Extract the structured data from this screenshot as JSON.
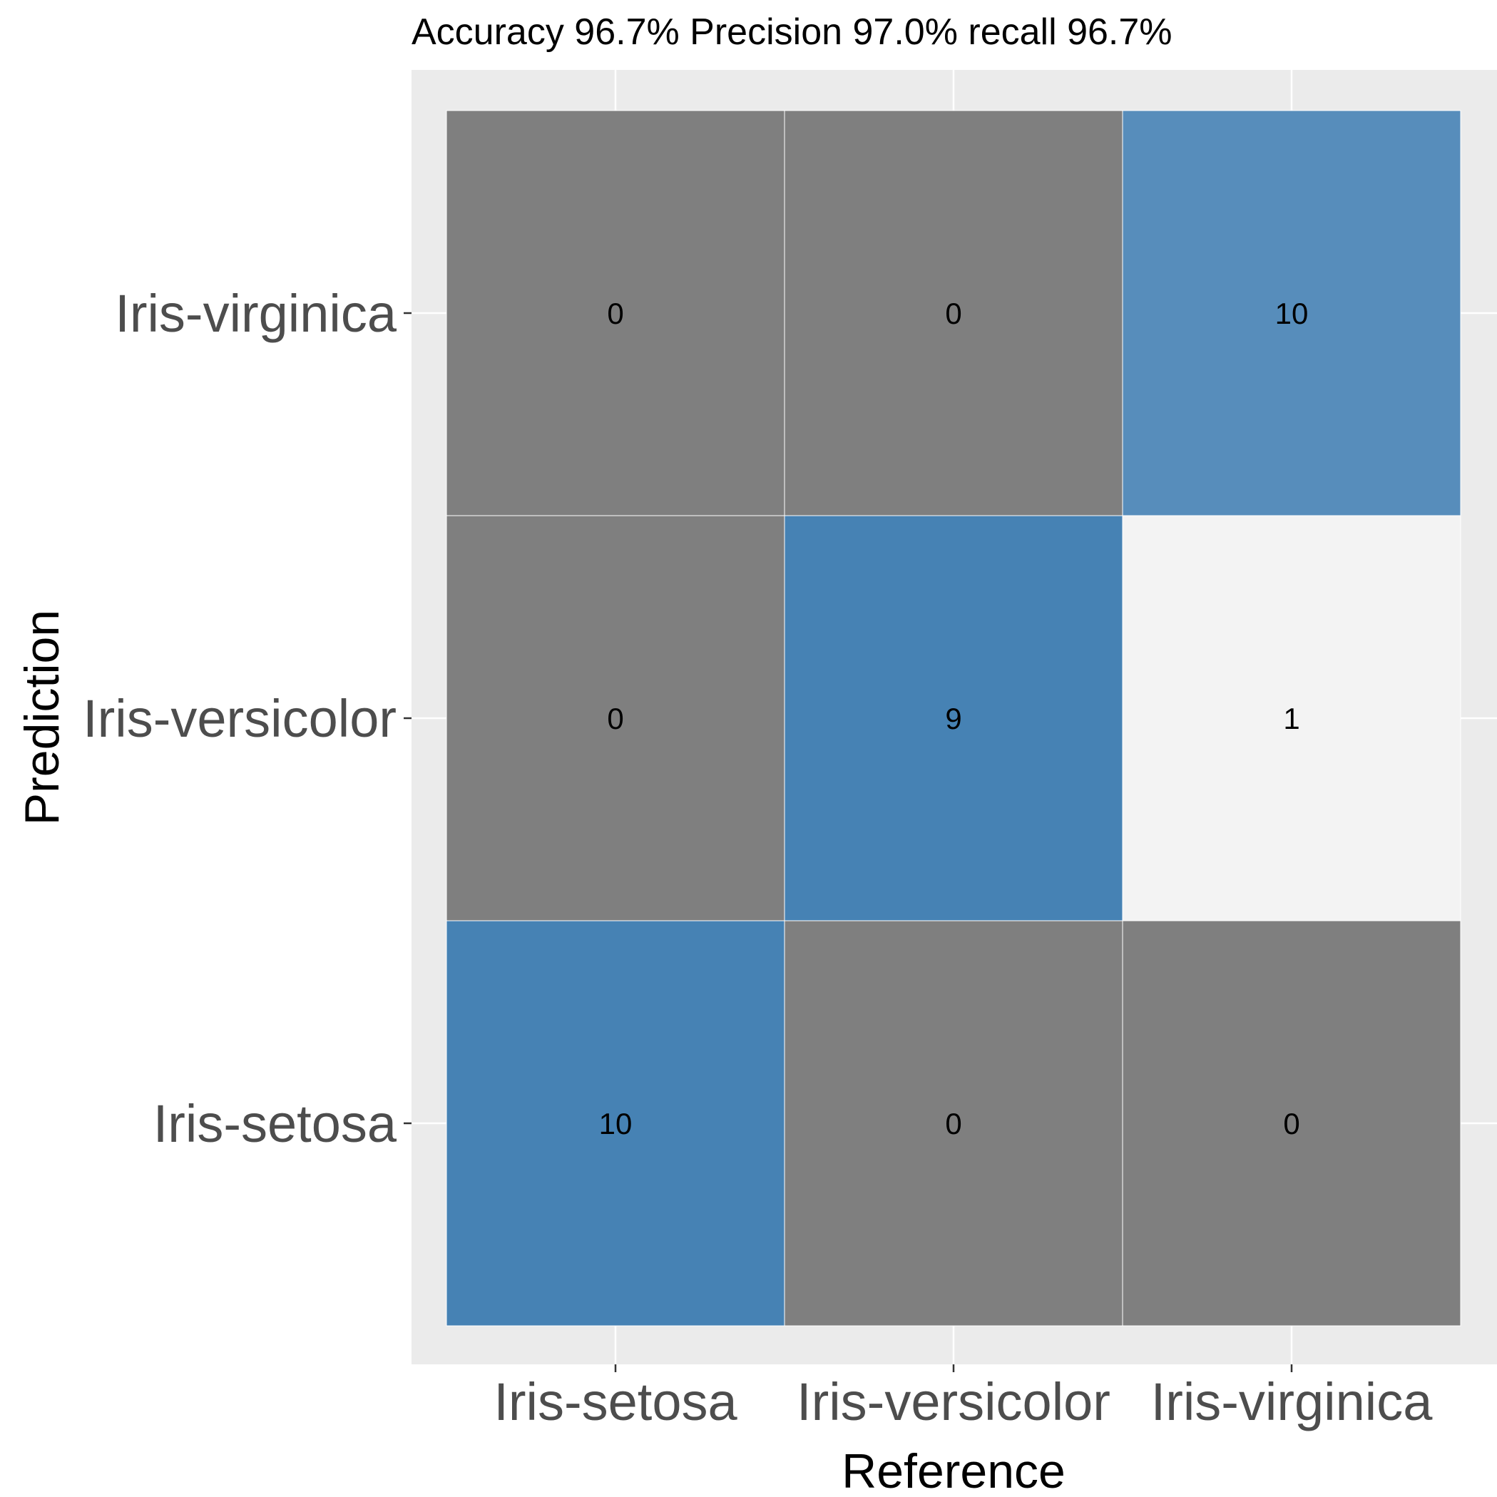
{
  "chart_data": {
    "type": "heatmap",
    "title": "Accuracy 96.7% Precision 97.0% recall 96.7%",
    "xlabel": "Reference",
    "ylabel": "Prediction",
    "x_categories": [
      "Iris-setosa",
      "Iris-versicolor",
      "Iris-virginica"
    ],
    "y_categories": [
      "Iris-setosa",
      "Iris-versicolor",
      "Iris-virginica"
    ],
    "cells": [
      {
        "reference": "Iris-setosa",
        "prediction": "Iris-setosa",
        "value": 10
      },
      {
        "reference": "Iris-versicolor",
        "prediction": "Iris-setosa",
        "value": 0
      },
      {
        "reference": "Iris-virginica",
        "prediction": "Iris-setosa",
        "value": 0
      },
      {
        "reference": "Iris-setosa",
        "prediction": "Iris-versicolor",
        "value": 0
      },
      {
        "reference": "Iris-versicolor",
        "prediction": "Iris-versicolor",
        "value": 9
      },
      {
        "reference": "Iris-virginica",
        "prediction": "Iris-versicolor",
        "value": 1
      },
      {
        "reference": "Iris-setosa",
        "prediction": "Iris-virginica",
        "value": 0
      },
      {
        "reference": "Iris-versicolor",
        "prediction": "Iris-virginica",
        "value": 0
      },
      {
        "reference": "Iris-virginica",
        "prediction": "Iris-virginica",
        "value": 10
      }
    ],
    "grid": true,
    "colors": {
      "panel_background": "#ebebeb",
      "gridline": "#ffffff",
      "zero_cell": "#7f7f7f",
      "correct_cell": "#4682b4",
      "misclassified_low": "#ffffff",
      "misclassified_high": "#7f7f7f",
      "correct_low": "#ffffff",
      "correct_high": "#4682b4",
      "cell_border": "#ffffff"
    }
  }
}
